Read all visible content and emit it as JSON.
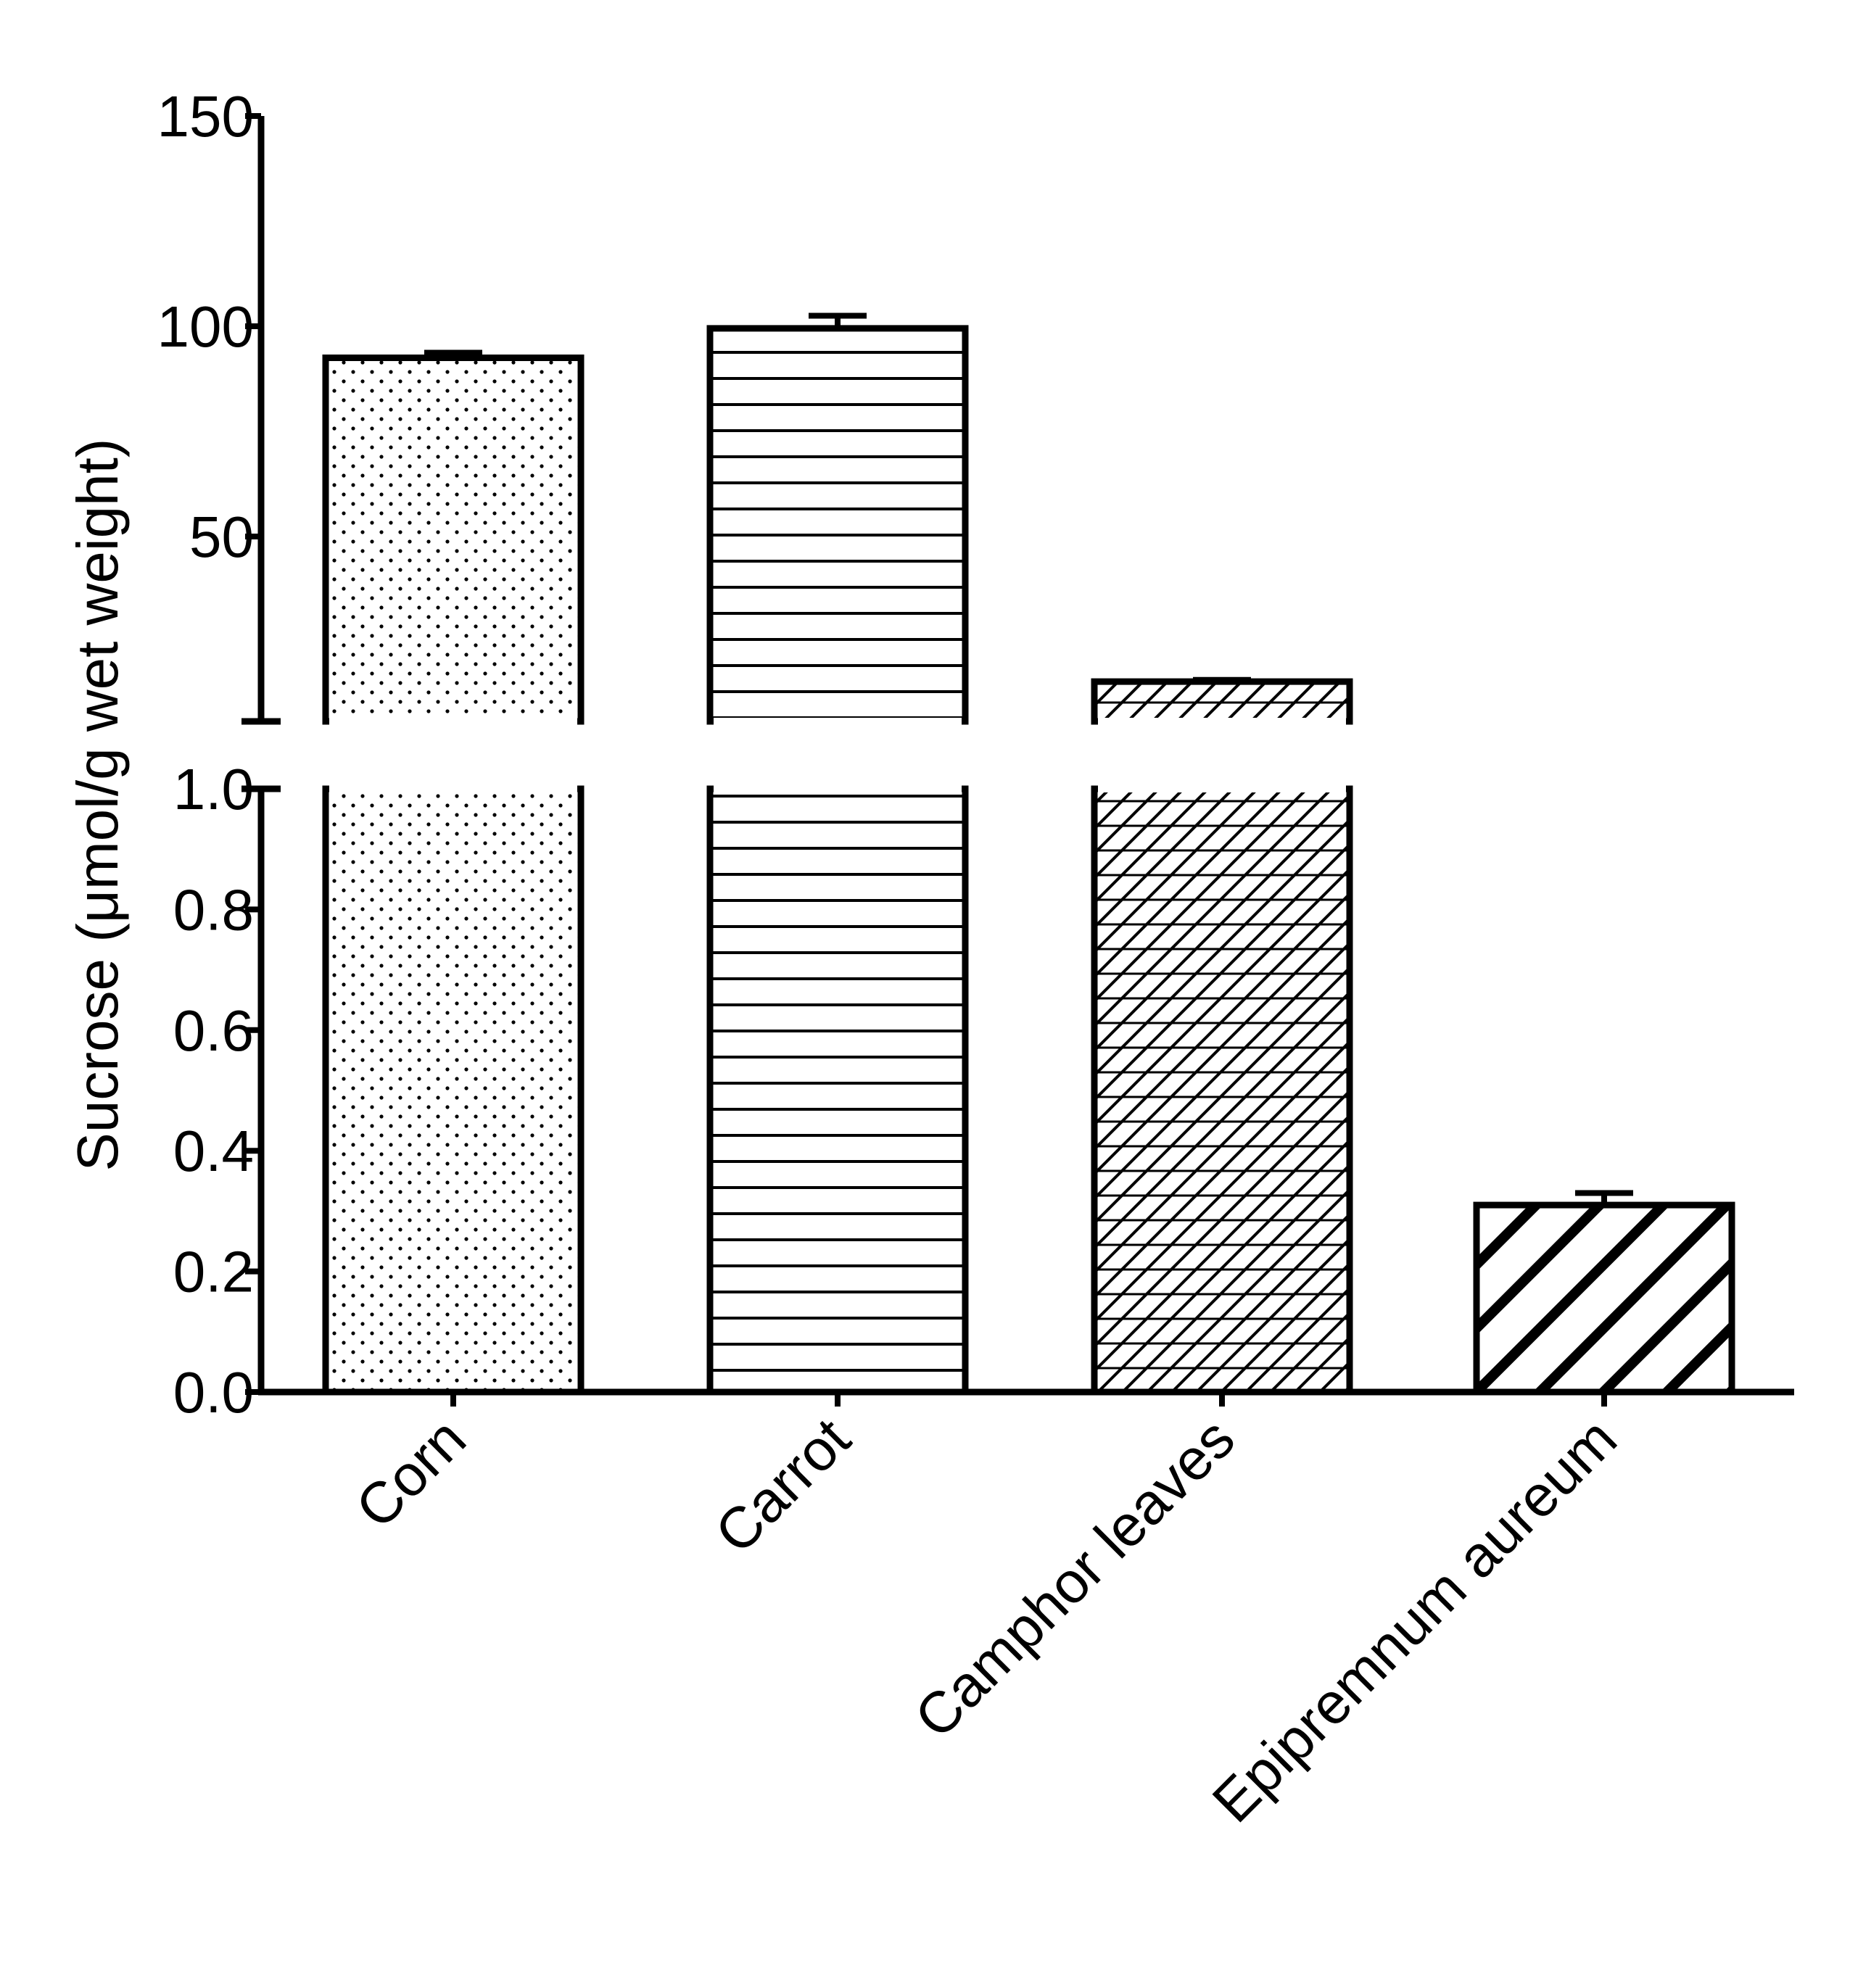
{
  "chart_data": {
    "type": "bar",
    "categories": [
      "Corn",
      "Carrot",
      "Camphor leaves",
      "Epipremnum aureum"
    ],
    "values": [
      92.5,
      99.5,
      15.5,
      0.31
    ],
    "errors": [
      1.2,
      3.0,
      0.4,
      0.02
    ],
    "patterns": [
      "dots",
      "horizontal-lines",
      "crosshatch",
      "diagonal-stripes"
    ],
    "ylabel": "Sucrose (μmol/g wet weight)",
    "xlabel": "",
    "title": "",
    "y_axis_break": true,
    "y_lower_range": [
      0,
      1.0
    ],
    "y_upper_range": [
      5,
      150
    ],
    "y_lower_ticks": [
      {
        "value": 0.0,
        "label": "0.0"
      },
      {
        "value": 0.2,
        "label": "0.2"
      },
      {
        "value": 0.4,
        "label": "0.4"
      },
      {
        "value": 0.6,
        "label": "0.6"
      },
      {
        "value": 0.8,
        "label": "0.8"
      },
      {
        "value": 1.0,
        "label": "1.0"
      }
    ],
    "y_upper_ticks": [
      {
        "value": 50,
        "label": "50"
      },
      {
        "value": 100,
        "label": "100"
      },
      {
        "value": 150,
        "label": "150"
      }
    ],
    "grid": false,
    "legend": "none",
    "colors": {
      "stroke": "#000000",
      "fill": "#ffffff"
    }
  }
}
